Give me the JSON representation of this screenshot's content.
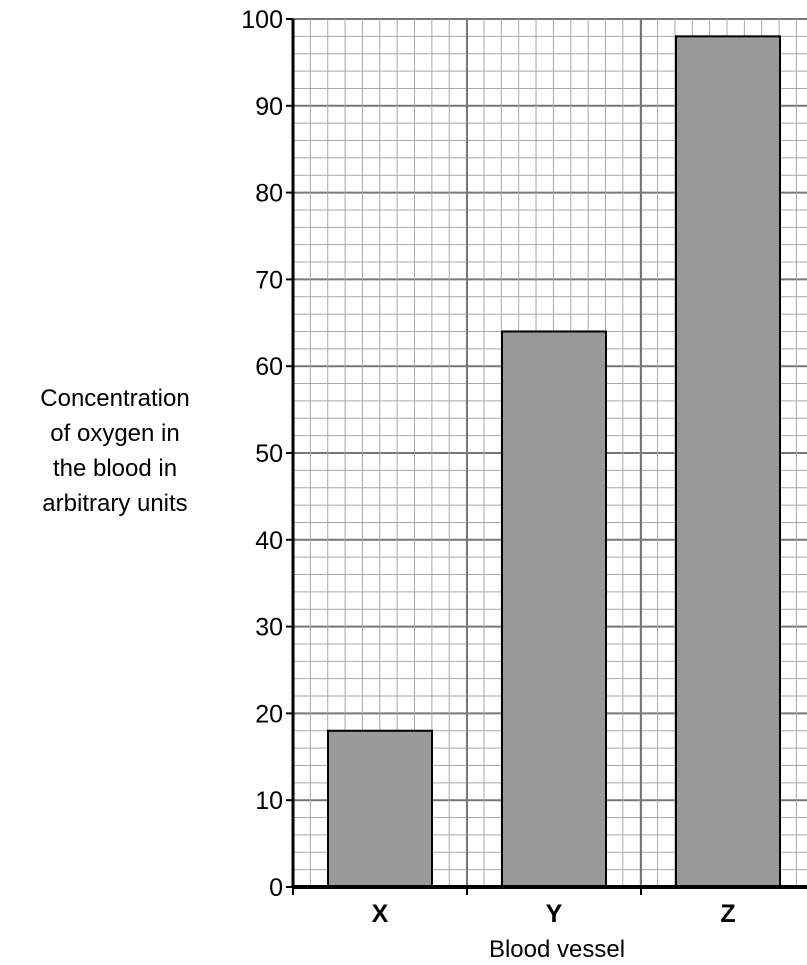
{
  "chart_data": {
    "type": "bar",
    "title": "",
    "categories": [
      "X",
      "Y",
      "Z"
    ],
    "values": [
      18,
      64,
      98
    ],
    "xlabel": "Blood vessel",
    "ylabel_lines": [
      "Concentration",
      "of oxygen in",
      "the blood in",
      "arbitrary units"
    ],
    "ylim": [
      0,
      100
    ],
    "yticks": [
      "0",
      "10",
      "20",
      "30",
      "40",
      "50",
      "60",
      "70",
      "80",
      "90",
      "100"
    ],
    "grid": true,
    "bar_color": "#999999",
    "legend": "none"
  }
}
